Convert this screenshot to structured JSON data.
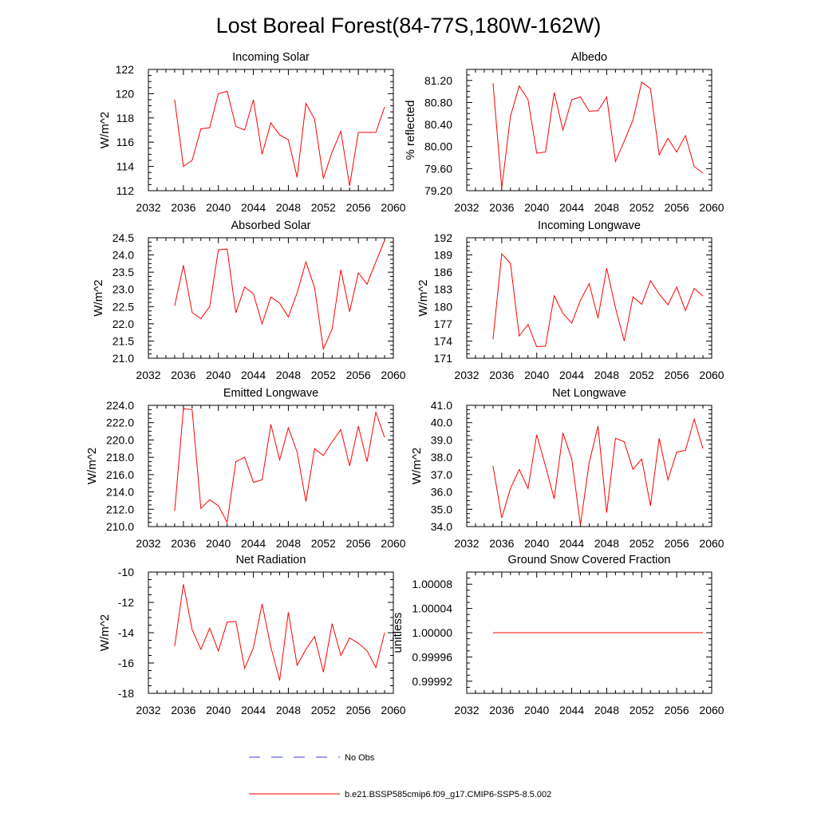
{
  "figure_title": "Lost Boreal Forest(84-77S,180W-162W)",
  "legend": [
    {
      "label": "No Obs",
      "color": "#3b3bd9",
      "style": "dashed"
    },
    {
      "label": "b.e21.BSSP585cmip6.f09_g17.CMIP6-SSP5-8.5.002",
      "color": "#ff0000",
      "style": "solid"
    }
  ],
  "chart_data": [
    {
      "type": "line",
      "title": "Incoming Solar",
      "ylabel": "W/m^2",
      "xlim": [
        2032,
        2060
      ],
      "ylim": [
        112,
        122
      ],
      "xticks": [
        "2032",
        "2036",
        "2040",
        "2044",
        "2048",
        "2052",
        "2056",
        "2060"
      ],
      "yticks": [
        "112",
        "114",
        "116",
        "118",
        "120",
        "122"
      ],
      "x": [
        2035,
        2036,
        2037,
        2038,
        2039,
        2040,
        2041,
        2042,
        2043,
        2044,
        2045,
        2046,
        2047,
        2048,
        2049,
        2050,
        2051,
        2052,
        2053,
        2054,
        2055,
        2056,
        2057,
        2058,
        2059
      ],
      "series": [
        {
          "color": "#ff0000",
          "values": [
            119.5,
            114.0,
            114.5,
            117.1,
            117.2,
            120.0,
            120.2,
            117.3,
            117.0,
            119.5,
            115.0,
            117.6,
            116.6,
            116.2,
            113.1,
            119.2,
            117.9,
            113.0,
            115.2,
            116.9,
            112.4,
            116.8,
            116.8,
            116.8,
            118.9
          ]
        }
      ]
    },
    {
      "type": "line",
      "title": "Albedo",
      "ylabel": "% reflected",
      "xlim": [
        2032,
        2060
      ],
      "ylim": [
        79.2,
        81.4
      ],
      "xticks": [
        "2032",
        "2036",
        "2040",
        "2044",
        "2048",
        "2052",
        "2056",
        "2060"
      ],
      "yticks": [
        "79.20",
        "79.60",
        "80.00",
        "80.40",
        "80.80",
        "81.20"
      ],
      "x": [
        2035,
        2036,
        2037,
        2038,
        2039,
        2040,
        2041,
        2042,
        2043,
        2044,
        2045,
        2046,
        2047,
        2048,
        2049,
        2050,
        2051,
        2052,
        2053,
        2054,
        2055,
        2056,
        2057,
        2058,
        2059
      ],
      "series": [
        {
          "color": "#ff0000",
          "values": [
            81.15,
            79.25,
            80.55,
            81.1,
            80.85,
            79.88,
            79.9,
            80.98,
            80.3,
            80.85,
            80.9,
            80.64,
            80.65,
            80.9,
            79.73,
            80.1,
            80.48,
            81.17,
            81.05,
            79.85,
            80.15,
            79.9,
            80.2,
            79.64,
            79.52
          ]
        }
      ]
    },
    {
      "type": "line",
      "title": "Absorbed Solar",
      "ylabel": "W/m^2",
      "xlim": [
        2032,
        2060
      ],
      "ylim": [
        21.0,
        24.5
      ],
      "xticks": [
        "2032",
        "2036",
        "2040",
        "2044",
        "2048",
        "2052",
        "2056",
        "2060"
      ],
      "yticks": [
        "21.0",
        "21.5",
        "22.0",
        "22.5",
        "23.0",
        "23.5",
        "24.0",
        "24.5"
      ],
      "x": [
        2035,
        2036,
        2037,
        2038,
        2039,
        2040,
        2041,
        2042,
        2043,
        2044,
        2045,
        2046,
        2047,
        2048,
        2049,
        2050,
        2051,
        2052,
        2053,
        2054,
        2055,
        2056,
        2057,
        2058,
        2059
      ],
      "series": [
        {
          "color": "#ff0000",
          "values": [
            22.52,
            23.7,
            22.33,
            22.15,
            22.5,
            24.15,
            24.17,
            22.32,
            23.07,
            22.87,
            22.0,
            22.78,
            22.6,
            22.2,
            22.9,
            23.8,
            23.05,
            21.27,
            21.85,
            23.57,
            22.35,
            23.48,
            23.15,
            23.8,
            24.42
          ]
        }
      ]
    },
    {
      "type": "line",
      "title": "Incoming Longwave",
      "ylabel": "W/m^2",
      "xlim": [
        2032,
        2060
      ],
      "ylim": [
        171,
        192
      ],
      "xticks": [
        "2032",
        "2036",
        "2040",
        "2044",
        "2048",
        "2052",
        "2056",
        "2060"
      ],
      "yticks": [
        "171",
        "174",
        "177",
        "180",
        "183",
        "186",
        "189",
        "192"
      ],
      "x": [
        2035,
        2036,
        2037,
        2038,
        2039,
        2040,
        2041,
        2042,
        2043,
        2044,
        2045,
        2046,
        2047,
        2048,
        2049,
        2050,
        2051,
        2052,
        2053,
        2054,
        2055,
        2056,
        2057,
        2058,
        2059
      ],
      "series": [
        {
          "color": "#ff0000",
          "values": [
            174.3,
            189.2,
            187.5,
            174.9,
            176.9,
            173.0,
            173.1,
            181.9,
            178.8,
            177.1,
            181.1,
            184.0,
            178.0,
            186.7,
            179.8,
            174.0,
            181.7,
            180.4,
            184.5,
            182.2,
            180.3,
            183.4,
            179.3,
            183.2,
            181.8
          ]
        }
      ]
    },
    {
      "type": "line",
      "title": "Emitted Longwave",
      "ylabel": "W/m^2",
      "xlim": [
        2032,
        2060
      ],
      "ylim": [
        210.0,
        224.0
      ],
      "xticks": [
        "2032",
        "2036",
        "2040",
        "2044",
        "2048",
        "2052",
        "2056",
        "2060"
      ],
      "yticks": [
        "210.0",
        "212.0",
        "214.0",
        "216.0",
        "218.0",
        "220.0",
        "222.0",
        "224.0"
      ],
      "x": [
        2035,
        2036,
        2037,
        2038,
        2039,
        2040,
        2041,
        2042,
        2043,
        2044,
        2045,
        2046,
        2047,
        2048,
        2049,
        2050,
        2051,
        2052,
        2053,
        2054,
        2055,
        2056,
        2057,
        2058,
        2059
      ],
      "series": [
        {
          "color": "#ff0000",
          "values": [
            211.8,
            223.6,
            223.5,
            212.1,
            213.1,
            212.4,
            210.5,
            217.5,
            218.0,
            215.1,
            215.4,
            221.8,
            217.7,
            221.4,
            218.6,
            212.9,
            219.0,
            218.2,
            219.8,
            221.2,
            217.0,
            221.6,
            217.5,
            223.2,
            220.3
          ]
        }
      ]
    },
    {
      "type": "line",
      "title": "Net Longwave",
      "ylabel": "W/m^2",
      "xlim": [
        2032,
        2060
      ],
      "ylim": [
        34.0,
        41.0
      ],
      "xticks": [
        "2032",
        "2036",
        "2040",
        "2044",
        "2048",
        "2052",
        "2056",
        "2060"
      ],
      "yticks": [
        "34.0",
        "35.0",
        "36.0",
        "37.0",
        "38.0",
        "39.0",
        "40.0",
        "41.0"
      ],
      "x": [
        2035,
        2036,
        2037,
        2038,
        2039,
        2040,
        2041,
        2042,
        2043,
        2044,
        2045,
        2046,
        2047,
        2048,
        2049,
        2050,
        2051,
        2052,
        2053,
        2054,
        2055,
        2056,
        2057,
        2058,
        2059
      ],
      "series": [
        {
          "color": "#ff0000",
          "values": [
            37.5,
            34.5,
            36.2,
            37.3,
            36.2,
            39.3,
            37.5,
            35.6,
            39.4,
            37.9,
            34.1,
            37.7,
            39.8,
            34.8,
            39.1,
            38.9,
            37.3,
            37.9,
            35.2,
            39.1,
            36.7,
            38.3,
            38.4,
            40.2,
            38.5
          ]
        }
      ]
    },
    {
      "type": "line",
      "title": "Net Radiation",
      "ylabel": "W/m^2",
      "xlim": [
        2032,
        2060
      ],
      "ylim": [
        -18,
        -10
      ],
      "xticks": [
        "2032",
        "2036",
        "2040",
        "2044",
        "2048",
        "2052",
        "2056",
        "2060"
      ],
      "yticks": [
        "-18",
        "-16",
        "-14",
        "-12",
        "-10"
      ],
      "x": [
        2035,
        2036,
        2037,
        2038,
        2039,
        2040,
        2041,
        2042,
        2043,
        2044,
        2045,
        2046,
        2047,
        2048,
        2049,
        2050,
        2051,
        2052,
        2053,
        2054,
        2055,
        2056,
        2057,
        2058,
        2059
      ],
      "series": [
        {
          "color": "#ff0000",
          "values": [
            -14.9,
            -10.8,
            -13.8,
            -15.1,
            -13.7,
            -15.2,
            -13.3,
            -13.25,
            -16.35,
            -15.0,
            -12.1,
            -14.95,
            -17.15,
            -12.65,
            -16.15,
            -15.1,
            -14.25,
            -16.6,
            -13.4,
            -15.5,
            -14.35,
            -14.7,
            -15.2,
            -16.3,
            -14.0
          ]
        }
      ]
    },
    {
      "type": "line",
      "title": "Ground Snow Covered Fraction",
      "ylabel": "unitless",
      "xlim": [
        2032,
        2060
      ],
      "ylim": [
        0.9999,
        1.0001
      ],
      "xticks": [
        "2032",
        "2036",
        "2040",
        "2044",
        "2048",
        "2052",
        "2056",
        "2060"
      ],
      "yticks": [
        "0.99992",
        "0.99996",
        "1.00000",
        "1.00004",
        "1.00008"
      ],
      "x": [
        2035,
        2036,
        2037,
        2038,
        2039,
        2040,
        2041,
        2042,
        2043,
        2044,
        2045,
        2046,
        2047,
        2048,
        2049,
        2050,
        2051,
        2052,
        2053,
        2054,
        2055,
        2056,
        2057,
        2058,
        2059
      ],
      "series": [
        {
          "color": "#ff0000",
          "values": [
            1,
            1,
            1,
            1,
            1,
            1,
            1,
            1,
            1,
            1,
            1,
            1,
            1,
            1,
            1,
            1,
            1,
            1,
            1,
            1,
            1,
            1,
            1,
            1,
            1
          ]
        }
      ]
    }
  ]
}
